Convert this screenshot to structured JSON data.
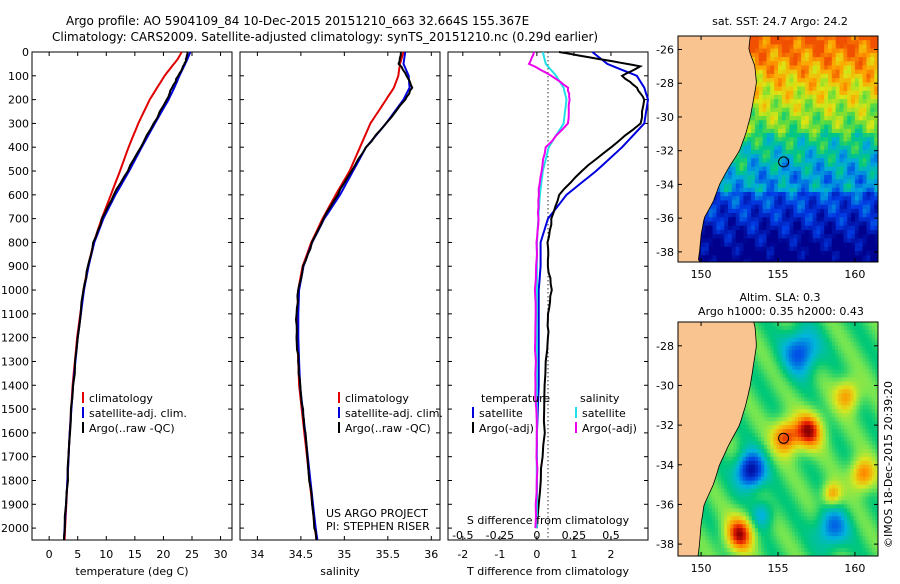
{
  "header": {
    "line1": "Argo profile: AO 5904109_84 10-Dec-2015 20151210_663 32.664S 155.367E",
    "line2": "Climatology: CARS2009. Satellite-adjusted climatology: synTS_20151210.nc (0.29d earlier)"
  },
  "colors": {
    "climatology": "#e00000",
    "satellite": "#0000dd",
    "argo": "#000000",
    "cyan": "#22e0e8",
    "magenta": "#ee00ee",
    "land": "#f9c48f"
  },
  "chart_data": [
    {
      "type": "line",
      "name": "temperature-panel",
      "xlabel": "temperature (deg C)",
      "ylabel": "",
      "xlim": [
        -3,
        32
      ],
      "ylim": [
        2050,
        0
      ],
      "xticks": [
        0,
        5,
        10,
        15,
        20,
        25,
        30
      ],
      "yticks": [
        0,
        100,
        200,
        300,
        400,
        500,
        600,
        700,
        800,
        900,
        1000,
        1100,
        1200,
        1300,
        1400,
        1500,
        1600,
        1700,
        1800,
        1900,
        2000
      ],
      "legend": [
        "climatology",
        "satellite-adj. clim.",
        "Argo(..raw -QC)"
      ],
      "series": [
        {
          "name": "climatology",
          "color": "#e00000",
          "y": [
            0,
            30,
            60,
            100,
            150,
            200,
            300,
            400,
            500,
            600,
            700,
            800,
            900,
            1000,
            1200,
            1400,
            1600,
            1800,
            2000,
            2050
          ],
          "values": [
            23.2,
            22.5,
            21.5,
            20.2,
            18.9,
            17.6,
            15.6,
            13.9,
            12.4,
            10.8,
            9.2,
            7.8,
            6.8,
            6.0,
            4.9,
            4.1,
            3.6,
            3.2,
            2.8,
            2.7
          ]
        },
        {
          "name": "satellite-adj. clim.",
          "color": "#0000dd",
          "y": [
            0,
            30,
            60,
            100,
            150,
            200,
            300,
            400,
            500,
            600,
            700,
            800,
            900,
            1000,
            1200,
            1400,
            1600,
            1800,
            2000,
            2050
          ],
          "values": [
            24.7,
            24.2,
            23.6,
            22.8,
            21.9,
            20.9,
            18.5,
            16.2,
            14.0,
            11.6,
            9.5,
            7.9,
            6.9,
            6.1,
            5.0,
            4.2,
            3.6,
            3.2,
            2.7,
            2.6
          ]
        },
        {
          "name": "Argo(..raw -QC)",
          "color": "#000000",
          "y": [
            0,
            30,
            60,
            100,
            150,
            200,
            300,
            400,
            500,
            600,
            700,
            800,
            900,
            1000,
            1200,
            1400,
            1600,
            1800,
            2000,
            2050
          ],
          "values": [
            24.2,
            24.0,
            23.5,
            22.6,
            21.5,
            20.6,
            18.3,
            16.0,
            13.7,
            11.3,
            9.3,
            7.8,
            6.8,
            6.0,
            5.0,
            4.2,
            3.6,
            3.2,
            2.7,
            2.6
          ]
        }
      ]
    },
    {
      "type": "line",
      "name": "salinity-panel",
      "xlabel": "salinity",
      "xlim": [
        33.8,
        36.1
      ],
      "ylim": [
        2050,
        0
      ],
      "xticks": [
        34,
        34.5,
        35,
        35.5,
        36
      ],
      "xticklabels": [
        "34",
        "34.5",
        "35",
        "35.5",
        "36"
      ],
      "legend": [
        "climatology",
        "satellite-adj. clim.",
        "Argo(..raw -QC)"
      ],
      "annotation": [
        "US ARGO PROJECT",
        "PI: STEPHEN RISER"
      ],
      "series": [
        {
          "name": "climatology",
          "color": "#e00000",
          "y": [
            0,
            50,
            100,
            150,
            200,
            300,
            400,
            500,
            600,
            700,
            800,
            900,
            1000,
            1100,
            1200,
            1300,
            1400,
            1500,
            1600,
            1800,
            2000,
            2050
          ],
          "values": [
            35.68,
            35.64,
            35.62,
            35.57,
            35.48,
            35.3,
            35.18,
            35.06,
            34.9,
            34.75,
            34.62,
            34.52,
            34.47,
            34.46,
            34.46,
            34.47,
            34.48,
            34.51,
            34.54,
            34.6,
            34.66,
            34.68
          ]
        },
        {
          "name": "satellite-adj. clim.",
          "color": "#0000dd",
          "y": [
            0,
            50,
            100,
            150,
            200,
            300,
            400,
            500,
            600,
            700,
            800,
            900,
            1000,
            1100,
            1200,
            1300,
            1400,
            1500,
            1600,
            1800,
            2000,
            2050
          ],
          "values": [
            35.7,
            35.68,
            35.74,
            35.75,
            35.68,
            35.48,
            35.25,
            35.1,
            34.95,
            34.77,
            34.63,
            34.53,
            34.48,
            34.47,
            34.47,
            34.48,
            34.49,
            34.52,
            34.55,
            34.61,
            34.67,
            34.69
          ]
        },
        {
          "name": "Argo(..raw -QC)",
          "color": "#000000",
          "y": [
            0,
            50,
            100,
            150,
            200,
            300,
            400,
            500,
            600,
            700,
            800,
            900,
            1000,
            1100,
            1200,
            1300,
            1400,
            1500,
            1600,
            1800,
            2000,
            2050
          ],
          "values": [
            35.65,
            35.63,
            35.72,
            35.78,
            35.7,
            35.48,
            35.25,
            35.08,
            34.92,
            34.76,
            34.63,
            34.53,
            34.47,
            34.45,
            34.45,
            34.47,
            34.49,
            34.52,
            34.55,
            34.6,
            34.66,
            34.68
          ]
        }
      ]
    },
    {
      "type": "line",
      "name": "difference-panel",
      "xlabel": "T difference from climatology",
      "top_axis_label": "S difference from climatology",
      "xlim": [
        -2.4,
        3.0
      ],
      "ylim": [
        2050,
        0
      ],
      "xticks": [
        -2,
        -1,
        0,
        1,
        2
      ],
      "xticklabels": [
        "-2",
        "-1",
        "0",
        "1",
        "2"
      ],
      "s_ticks": [
        -0.5,
        -0.25,
        0,
        0.25,
        0.5
      ],
      "s_ticklabels": [
        "-0.5",
        "-0.25",
        "0",
        "0.25",
        "0.5"
      ],
      "legend_temperature": {
        "title": "temperature",
        "items": [
          "satellite",
          "Argo(-adj)"
        ]
      },
      "legend_salinity": {
        "title": "salinity",
        "items": [
          "satellite",
          "Argo(-adj)"
        ]
      },
      "series": [
        {
          "name": "temperature satellite",
          "color": "#0000dd",
          "y": [
            0,
            50,
            100,
            150,
            200,
            300,
            400,
            500,
            600,
            700,
            800,
            900,
            1000,
            1200,
            1400,
            1600,
            1800,
            2000
          ],
          "values": [
            1.5,
            1.9,
            2.7,
            2.9,
            3.0,
            2.9,
            2.3,
            1.6,
            0.8,
            0.3,
            0.1,
            0.1,
            0.05,
            0.05,
            0.05,
            0.0,
            0.0,
            0.0
          ]
        },
        {
          "name": "temperature Argo(-adj)",
          "color": "#000000",
          "y": [
            0,
            30,
            60,
            100,
            150,
            200,
            300,
            400,
            500,
            600,
            700,
            800,
            900,
            1000,
            1100,
            1200,
            1400,
            1600,
            1800,
            2000
          ],
          "values": [
            0.6,
            1.7,
            2.8,
            2.3,
            2.7,
            2.9,
            2.8,
            2.0,
            1.2,
            0.6,
            0.4,
            0.3,
            0.3,
            0.4,
            0.3,
            0.3,
            0.2,
            0.2,
            0.1,
            0.0
          ]
        },
        {
          "name": "salinity satellite",
          "color": "#22e0e8",
          "y": [
            0,
            50,
            100,
            150,
            200,
            300,
            400,
            500,
            600,
            700,
            800,
            1000,
            1200,
            1400,
            1600,
            1800,
            2000
          ],
          "values": [
            0.04,
            0.06,
            0.13,
            0.18,
            0.2,
            0.18,
            0.08,
            0.04,
            0.02,
            0.01,
            0.0,
            0.0,
            0.0,
            0.0,
            0.0,
            0.0,
            0.0
          ]
        },
        {
          "name": "salinity Argo(-adj)",
          "color": "#ee00ee",
          "y": [
            0,
            50,
            100,
            150,
            200,
            300,
            400,
            500,
            600,
            700,
            800,
            1000,
            1200,
            1400,
            1600,
            1800,
            2000
          ],
          "values": [
            -0.02,
            -0.05,
            0.1,
            0.21,
            0.22,
            0.21,
            0.06,
            0.03,
            0.01,
            0.01,
            0.0,
            -0.01,
            -0.01,
            -0.01,
            0.0,
            0.0,
            -0.01
          ]
        }
      ]
    },
    {
      "type": "heatmap",
      "name": "sst-map",
      "title": "sat. SST: 24.7  Argo: 24.2",
      "xlim": [
        148.5,
        161.5
      ],
      "ylim": [
        -38.6,
        -25.2
      ],
      "xticks": [
        150,
        155,
        160
      ],
      "yticks": [
        -26,
        -28,
        -30,
        -32,
        -34,
        -36,
        -38
      ],
      "argo_position": {
        "lon": 155.367,
        "lat": -32.664
      }
    },
    {
      "type": "heatmap",
      "name": "sla-map",
      "title_line1": "Altim. SLA: 0.3",
      "title_line2": "Argo h1000: 0.35  h2000: 0.43",
      "xlim": [
        148.5,
        161.5
      ],
      "ylim": [
        -38.6,
        -26.8
      ],
      "xticks": [
        150,
        155,
        160
      ],
      "yticks": [
        -28,
        -30,
        -32,
        -34,
        -36,
        -38
      ],
      "argo_position": {
        "lon": 155.367,
        "lat": -32.664
      }
    }
  ],
  "footer": {
    "credit": "©IMOS 18-Dec-2015 20:39:20"
  }
}
